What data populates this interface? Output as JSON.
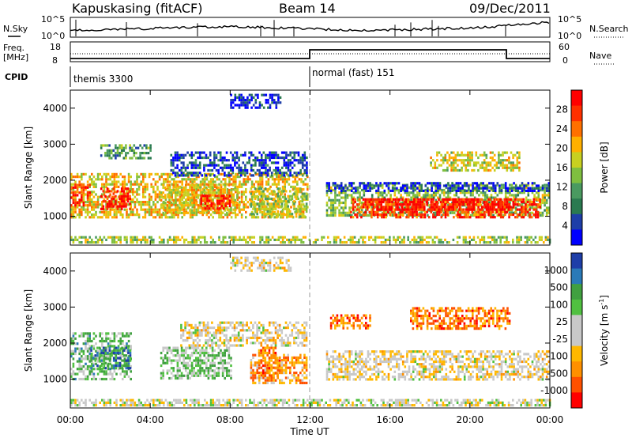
{
  "header": {
    "station": "Kapuskasing (fitACF)",
    "beam": "Beam 14",
    "date": "09/Dec/2011"
  },
  "top_panels": {
    "nsky_label": "N.Sky",
    "nsearch_label": "N.Search",
    "nsky_ticks": [
      "10^5",
      "10^0"
    ],
    "nsky_right_ticks": [
      "10^5",
      "10^0"
    ],
    "freq_label_1": "Freq.",
    "freq_label_2": "[MHz]",
    "freq_ticks": [
      "18",
      "8"
    ],
    "nave_label": "Nave",
    "nave_ticks": [
      "60",
      "0"
    ],
    "cpid_label": "CPID",
    "modes": [
      {
        "name": "themis 3300"
      },
      {
        "name": "normal (fast) 151"
      }
    ]
  },
  "colors": {
    "power_scale": [
      "#0000ff",
      "#1e3ea8",
      "#2a7a50",
      "#4a9a60",
      "#7fbf3f",
      "#c8d020",
      "#ffb000",
      "#ff7000",
      "#ff3000",
      "#ff0000"
    ],
    "velocity_scale": [
      "#ff0000",
      "#ff5000",
      "#ff9000",
      "#ffb800",
      "#c8c8c8",
      "#c8c8c8",
      "#50c040",
      "#40a040",
      "#2a7ab8",
      "#1e3ea8"
    ]
  },
  "chart_data": [
    {
      "type": "heatmap",
      "panel": "power",
      "ylabel": "Slant Range [km]",
      "ylim": [
        200,
        4500
      ],
      "yticks": [
        1000,
        2000,
        3000,
        4000
      ],
      "xlim_hours": [
        0,
        24
      ],
      "colorbar_label": "Power [dB]",
      "colorbar_ticks": [
        "28",
        "24",
        "20",
        "16",
        "12",
        "8",
        "4"
      ],
      "bands": [
        {
          "t0": 0.0,
          "t1": 11.9,
          "r0": 1000,
          "r1": 2200,
          "level": 0.6
        },
        {
          "t0": 1.5,
          "t1": 3.0,
          "r0": 1200,
          "r1": 1800,
          "level": 0.95
        },
        {
          "t0": 0.0,
          "t1": 1.0,
          "r0": 1300,
          "r1": 1900,
          "level": 0.85
        },
        {
          "t0": 4.5,
          "t1": 8.5,
          "r0": 1100,
          "r1": 1900,
          "level": 0.6
        },
        {
          "t0": 6.5,
          "t1": 8.0,
          "r0": 1200,
          "r1": 1600,
          "level": 0.9
        },
        {
          "t0": 5.0,
          "t1": 11.8,
          "r0": 2100,
          "r1": 2800,
          "level": 0.15
        },
        {
          "t0": 9.0,
          "t1": 11.8,
          "r0": 1000,
          "r1": 1800,
          "level": 0.5
        },
        {
          "t0": 12.8,
          "t1": 24.0,
          "r0": 1000,
          "r1": 1900,
          "level": 0.45
        },
        {
          "t0": 14.0,
          "t1": 23.5,
          "r0": 1000,
          "r1": 1500,
          "level": 0.85
        },
        {
          "t0": 15.0,
          "t1": 22.0,
          "r0": 1200,
          "r1": 1500,
          "level": 0.95
        },
        {
          "t0": 12.8,
          "t1": 24.0,
          "r0": 1700,
          "r1": 1950,
          "level": 0.1
        },
        {
          "t0": 18.0,
          "t1": 22.5,
          "r0": 2300,
          "r1": 2800,
          "level": 0.55
        },
        {
          "t0": 0.0,
          "t1": 24.0,
          "r0": 300,
          "r1": 450,
          "level": 0.5
        },
        {
          "t0": 1.5,
          "t1": 4.0,
          "r0": 2600,
          "r1": 3000,
          "level": 0.35
        },
        {
          "t0": 8.0,
          "t1": 10.5,
          "r0": 4000,
          "r1": 4400,
          "level": 0.1
        }
      ]
    },
    {
      "type": "heatmap",
      "panel": "velocity",
      "ylabel": "Slant Range [km]",
      "ylim": [
        200,
        4500
      ],
      "yticks": [
        1000,
        2000,
        3000,
        4000
      ],
      "xlim_hours": [
        0,
        24
      ],
      "xticks": [
        "00:00",
        "04:00",
        "08:00",
        "12:00",
        "16:00",
        "20:00",
        "00:00"
      ],
      "xlabel": "Time UT",
      "colorbar_label": "Velocity [m s-1]",
      "colorbar_ticks": [
        "1000",
        "500",
        "100",
        "25",
        "-25",
        "-100",
        "-500",
        "-1000"
      ],
      "bands": [
        {
          "t0": 0.0,
          "t1": 3.0,
          "r0": 1000,
          "r1": 2300,
          "level": 0.65
        },
        {
          "t0": 1.0,
          "t1": 3.0,
          "r0": 1300,
          "r1": 1900,
          "level": 0.82
        },
        {
          "t0": 4.5,
          "t1": 8.0,
          "r0": 1000,
          "r1": 1900,
          "level": 0.62
        },
        {
          "t0": 5.5,
          "t1": 11.8,
          "r0": 1900,
          "r1": 2600,
          "level": 0.45
        },
        {
          "t0": 9.0,
          "t1": 11.8,
          "r0": 900,
          "r1": 1700,
          "level": 0.28
        },
        {
          "t0": 9.4,
          "t1": 10.5,
          "r0": 1100,
          "r1": 1900,
          "level": 0.22
        },
        {
          "t0": 12.8,
          "t1": 24.0,
          "r0": 1000,
          "r1": 1800,
          "level": 0.45
        },
        {
          "t0": 13.0,
          "t1": 15.0,
          "r0": 2400,
          "r1": 2800,
          "level": 0.2
        },
        {
          "t0": 17.0,
          "t1": 22.0,
          "r0": 2400,
          "r1": 3000,
          "level": 0.22
        },
        {
          "t0": 0.0,
          "t1": 24.0,
          "r0": 300,
          "r1": 450,
          "level": 0.5
        },
        {
          "t0": 8.0,
          "t1": 11.0,
          "r0": 4000,
          "r1": 4400,
          "level": 0.45
        }
      ]
    }
  ]
}
